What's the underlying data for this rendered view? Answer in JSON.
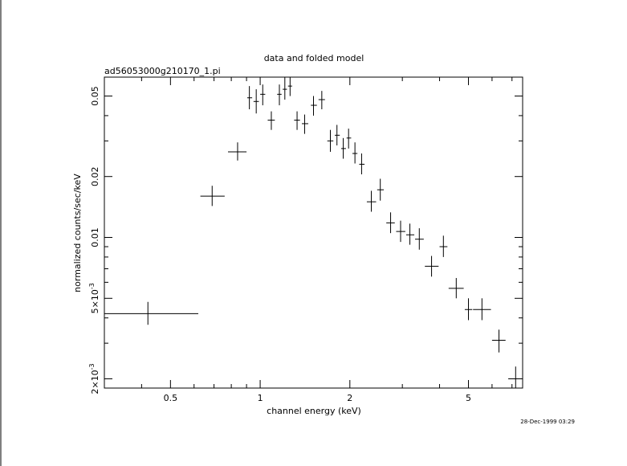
{
  "chart_data": {
    "type": "scatter",
    "title": "data and folded model",
    "subtitle": "ad56053000g210170_1.pi",
    "xlabel": "channel energy (keV)",
    "ylabel": "normalized counts/sec/keV",
    "timestamp": "28-Dec-1999 03:29",
    "xscale": "log",
    "yscale": "log",
    "xlim": [
      0.3,
      7.6
    ],
    "ylim": [
      0.0018,
      0.062
    ],
    "xticks": [
      {
        "value": 0.5,
        "label": "0.5"
      },
      {
        "value": 1,
        "label": "1"
      },
      {
        "value": 2,
        "label": "2"
      },
      {
        "value": 5,
        "label": "5"
      }
    ],
    "yticks": [
      {
        "value": 0.002,
        "mant": "2",
        "exp": "-3"
      },
      {
        "value": 0.005,
        "mant": "5",
        "exp": "-3"
      },
      {
        "value": 0.01,
        "label": "0.01"
      },
      {
        "value": 0.02,
        "label": "0.02"
      },
      {
        "value": 0.05,
        "label": "0.05"
      }
    ],
    "series": [
      {
        "points": [
          {
            "x": 0.42,
            "xlo": 0.3,
            "xhi": 0.62,
            "y": 0.0042,
            "ylo": 0.0037,
            "yhi": 0.0048
          },
          {
            "x": 0.69,
            "xlo": 0.63,
            "xhi": 0.76,
            "y": 0.016,
            "ylo": 0.0143,
            "yhi": 0.018
          },
          {
            "x": 0.84,
            "xlo": 0.78,
            "xhi": 0.9,
            "y": 0.0265,
            "ylo": 0.024,
            "yhi": 0.0295
          },
          {
            "x": 0.92,
            "xlo": 0.905,
            "xhi": 0.94,
            "y": 0.049,
            "ylo": 0.043,
            "yhi": 0.056
          },
          {
            "x": 0.97,
            "xlo": 0.95,
            "xhi": 0.99,
            "y": 0.047,
            "ylo": 0.041,
            "yhi": 0.054
          },
          {
            "x": 1.02,
            "xlo": 1.0,
            "xhi": 1.04,
            "y": 0.051,
            "ylo": 0.045,
            "yhi": 0.057
          },
          {
            "x": 1.09,
            "xlo": 1.06,
            "xhi": 1.12,
            "y": 0.038,
            "ylo": 0.034,
            "yhi": 0.042
          },
          {
            "x": 1.16,
            "xlo": 1.14,
            "xhi": 1.18,
            "y": 0.051,
            "ylo": 0.045,
            "yhi": 0.057
          },
          {
            "x": 1.21,
            "xlo": 1.19,
            "xhi": 1.23,
            "y": 0.054,
            "ylo": 0.048,
            "yhi": 0.062
          },
          {
            "x": 1.26,
            "xlo": 1.24,
            "xhi": 1.28,
            "y": 0.056,
            "ylo": 0.05,
            "yhi": 0.062
          },
          {
            "x": 1.33,
            "xlo": 1.3,
            "xhi": 1.36,
            "y": 0.038,
            "ylo": 0.034,
            "yhi": 0.042
          },
          {
            "x": 1.41,
            "xlo": 1.38,
            "xhi": 1.45,
            "y": 0.0365,
            "ylo": 0.0325,
            "yhi": 0.0405
          },
          {
            "x": 1.51,
            "xlo": 1.48,
            "xhi": 1.55,
            "y": 0.045,
            "ylo": 0.04,
            "yhi": 0.05
          },
          {
            "x": 1.61,
            "xlo": 1.57,
            "xhi": 1.65,
            "y": 0.048,
            "ylo": 0.043,
            "yhi": 0.053
          },
          {
            "x": 1.72,
            "xlo": 1.68,
            "xhi": 1.76,
            "y": 0.03,
            "ylo": 0.0265,
            "yhi": 0.034
          },
          {
            "x": 1.81,
            "xlo": 1.78,
            "xhi": 1.85,
            "y": 0.032,
            "ylo": 0.0285,
            "yhi": 0.036
          },
          {
            "x": 1.9,
            "xlo": 1.87,
            "xhi": 1.94,
            "y": 0.0275,
            "ylo": 0.0245,
            "yhi": 0.031
          },
          {
            "x": 1.98,
            "xlo": 1.95,
            "xhi": 2.02,
            "y": 0.031,
            "ylo": 0.0275,
            "yhi": 0.0345
          },
          {
            "x": 2.08,
            "xlo": 2.04,
            "xhi": 2.12,
            "y": 0.026,
            "ylo": 0.0232,
            "yhi": 0.0295
          },
          {
            "x": 2.19,
            "xlo": 2.15,
            "xhi": 2.24,
            "y": 0.023,
            "ylo": 0.0205,
            "yhi": 0.026
          },
          {
            "x": 2.36,
            "xlo": 2.28,
            "xhi": 2.45,
            "y": 0.015,
            "ylo": 0.0134,
            "yhi": 0.017
          },
          {
            "x": 2.53,
            "xlo": 2.47,
            "xhi": 2.6,
            "y": 0.0172,
            "ylo": 0.0152,
            "yhi": 0.0195
          },
          {
            "x": 2.74,
            "xlo": 2.65,
            "xhi": 2.83,
            "y": 0.0118,
            "ylo": 0.0105,
            "yhi": 0.0133
          },
          {
            "x": 2.96,
            "xlo": 2.86,
            "xhi": 3.07,
            "y": 0.0107,
            "ylo": 0.0095,
            "yhi": 0.0121
          },
          {
            "x": 3.18,
            "xlo": 3.09,
            "xhi": 3.29,
            "y": 0.0103,
            "ylo": 0.0092,
            "yhi": 0.0117
          },
          {
            "x": 3.42,
            "xlo": 3.31,
            "xhi": 3.54,
            "y": 0.0098,
            "ylo": 0.0087,
            "yhi": 0.0111
          },
          {
            "x": 3.76,
            "xlo": 3.57,
            "xhi": 3.97,
            "y": 0.0072,
            "ylo": 0.0064,
            "yhi": 0.0081
          },
          {
            "x": 4.12,
            "xlo": 4.0,
            "xhi": 4.25,
            "y": 0.009,
            "ylo": 0.008,
            "yhi": 0.0102
          },
          {
            "x": 4.55,
            "xlo": 4.29,
            "xhi": 4.82,
            "y": 0.0056,
            "ylo": 0.005,
            "yhi": 0.0063
          },
          {
            "x": 5.0,
            "xlo": 4.86,
            "xhi": 5.15,
            "y": 0.0044,
            "ylo": 0.0039,
            "yhi": 0.005
          },
          {
            "x": 5.55,
            "xlo": 5.18,
            "xhi": 5.95,
            "y": 0.0044,
            "ylo": 0.0039,
            "yhi": 0.005
          },
          {
            "x": 6.33,
            "xlo": 6.0,
            "xhi": 6.66,
            "y": 0.0031,
            "ylo": 0.0027,
            "yhi": 0.0035
          },
          {
            "x": 7.2,
            "xlo": 6.8,
            "xhi": 7.6,
            "y": 0.002,
            "ylo": 0.0018,
            "yhi": 0.0023
          }
        ]
      }
    ]
  }
}
